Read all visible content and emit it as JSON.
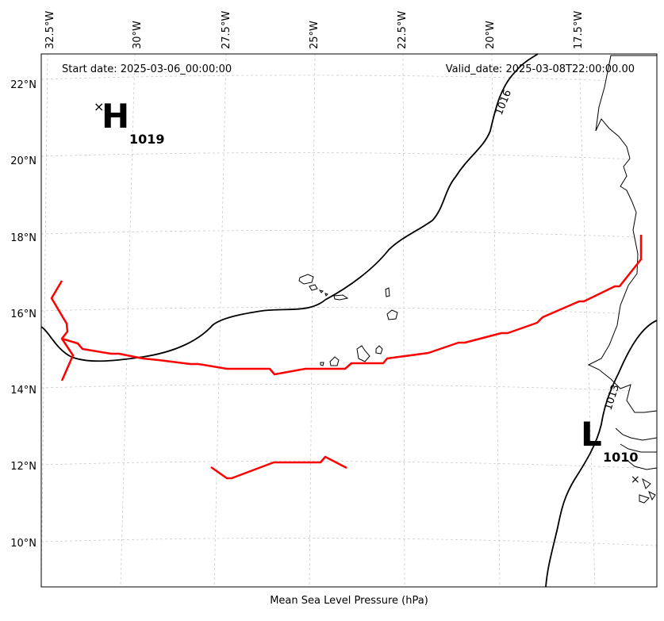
{
  "map": {
    "start_date": "Start date: 2025-03-06_00:00:00",
    "valid_date": "Valid_date: 2025-03-08T22:00:00.00",
    "xlabel": "Mean Sea Level Pressure (hPa)",
    "lon_labels": [
      "32.5°W",
      "30°W",
      "27.5°W",
      "25°W",
      "22.5°W",
      "20°W",
      "17.5°W"
    ],
    "lat_labels": [
      "22°N",
      "20°N",
      "18°N",
      "16°N",
      "14°N",
      "12°N",
      "10°N"
    ],
    "high_center": {
      "symbol": "H",
      "marker": "×",
      "value": "1019"
    },
    "low_center": {
      "symbol": "L",
      "marker": "×",
      "value": "1010"
    },
    "isobar_labels": [
      "1016",
      "1013"
    ],
    "colors": {
      "isobar": "#000000",
      "trough": "#ff0000",
      "grid": "#cccccc"
    }
  }
}
